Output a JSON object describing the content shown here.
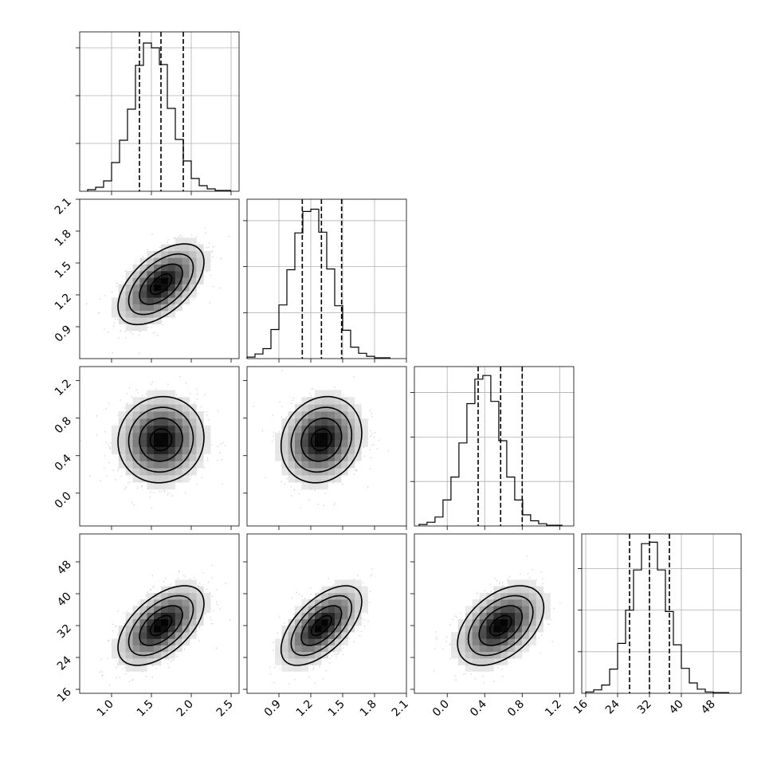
{
  "chart_data": {
    "type": "corner",
    "grid": true,
    "parameters": [
      {
        "range": [
          0.6,
          2.6
        ],
        "ticks": [
          1.0,
          1.5,
          2.0,
          2.5
        ],
        "tick_labels": [
          "1.0",
          "1.5",
          "2.0",
          "2.5"
        ],
        "mean": 1.62,
        "sigma": 0.27,
        "quantiles": [
          1.35,
          1.62,
          1.9
        ]
      },
      {
        "range": [
          0.6,
          2.1
        ],
        "ticks": [
          0.9,
          1.2,
          1.5,
          1.8,
          2.1
        ],
        "tick_labels": [
          "0.9",
          "1.2",
          "1.5",
          "1.8",
          "2.1"
        ],
        "mean": 1.3,
        "sigma": 0.19,
        "quantiles": [
          1.12,
          1.3,
          1.49
        ]
      },
      {
        "range": [
          -0.35,
          1.35
        ],
        "ticks": [
          0.0,
          0.4,
          0.8,
          1.2
        ],
        "tick_labels": [
          "0.0",
          "0.4",
          "0.8",
          "1.2"
        ],
        "mean": 0.57,
        "sigma": 0.23,
        "quantiles": [
          0.33,
          0.57,
          0.8
        ]
      },
      {
        "range": [
          15,
          55
        ],
        "ticks": [
          16,
          24,
          32,
          40,
          48
        ],
        "tick_labels": [
          "16",
          "24",
          "32",
          "40",
          "48"
        ],
        "mean": 32.0,
        "sigma": 5.0,
        "quantiles": [
          27.0,
          32.0,
          37.0
        ]
      }
    ],
    "histograms": [
      {
        "param": 0,
        "bin_start": 0.7,
        "bin_width": 0.1,
        "counts": [
          2,
          5,
          13,
          36,
          64,
          103,
          158,
          186,
          180,
          159,
          104,
          65,
          38,
          16,
          7,
          3,
          1,
          1
        ],
        "hist_y_ticks": [
          60,
          120,
          180
        ],
        "hist_y_max": 200
      },
      {
        "param": 1,
        "bin_start": 0.6,
        "bin_width": 0.075,
        "counts": [
          2,
          6,
          13,
          38,
          70,
          116,
          164,
          192,
          195,
          165,
          117,
          69,
          37,
          15,
          7,
          3,
          1,
          1
        ],
        "hist_y_ticks": [
          60,
          120,
          180
        ],
        "hist_y_max": 208
      },
      {
        "param": 2,
        "bin_start": -0.3,
        "bin_width": 0.085,
        "counts": [
          2,
          5,
          12,
          35,
          66,
          112,
          165,
          198,
          203,
          168,
          115,
          66,
          35,
          15,
          7,
          3,
          1,
          1
        ],
        "hist_y_ticks": [
          60,
          120,
          180
        ],
        "hist_y_max": 215
      },
      {
        "param": 3,
        "bin_start": 16,
        "bin_width": 2,
        "counts": [
          2,
          5,
          12,
          35,
          72,
          120,
          178,
          216,
          218,
          178,
          118,
          70,
          36,
          15,
          6,
          2,
          1,
          1
        ],
        "hist_y_ticks": [
          60,
          120,
          180
        ],
        "hist_y_max": 230
      }
    ],
    "pairs": [
      {
        "x_param": 0,
        "y_param": 1,
        "correlation": 0.55
      },
      {
        "x_param": 0,
        "y_param": 2,
        "correlation": 0.05
      },
      {
        "x_param": 1,
        "y_param": 2,
        "correlation": 0.15
      },
      {
        "x_param": 0,
        "y_param": 3,
        "correlation": 0.55
      },
      {
        "x_param": 1,
        "y_param": 3,
        "correlation": 0.6
      },
      {
        "x_param": 2,
        "y_param": 3,
        "correlation": 0.45
      }
    ],
    "contour_sigma_levels": [
      0.5,
      1.0,
      1.5,
      2.0
    ]
  }
}
